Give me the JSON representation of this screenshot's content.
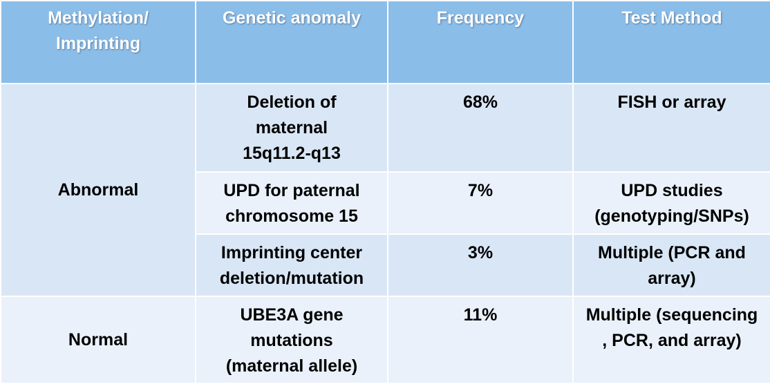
{
  "table": {
    "headers": [
      "Methylation/\nImprinting",
      "Genetic anomaly",
      "Frequency",
      "Test Method"
    ],
    "groups": {
      "abnormal": "Abnormal",
      "normal": "Normal"
    },
    "rows": [
      {
        "anomaly": "Deletion of maternal 15q11.2-q13",
        "frequency": "68%",
        "test_method": "FISH or array"
      },
      {
        "anomaly": "UPD for paternal chromosome 15",
        "frequency": "7%",
        "test_method": "UPD studies (genotyping/SNPs)"
      },
      {
        "anomaly": "Imprinting center deletion/mutation",
        "frequency": "3%",
        "test_method": "Multiple (PCR and array)"
      },
      {
        "anomaly": "UBE3A gene mutations (maternal allele)",
        "frequency": "11%",
        "test_method": "Multiple (sequencing , PCR, and array)"
      }
    ],
    "colors": {
      "header_bg": "#8bbde9",
      "row_dark": "#d9e6f5",
      "row_light": "#eaf1fa"
    }
  }
}
